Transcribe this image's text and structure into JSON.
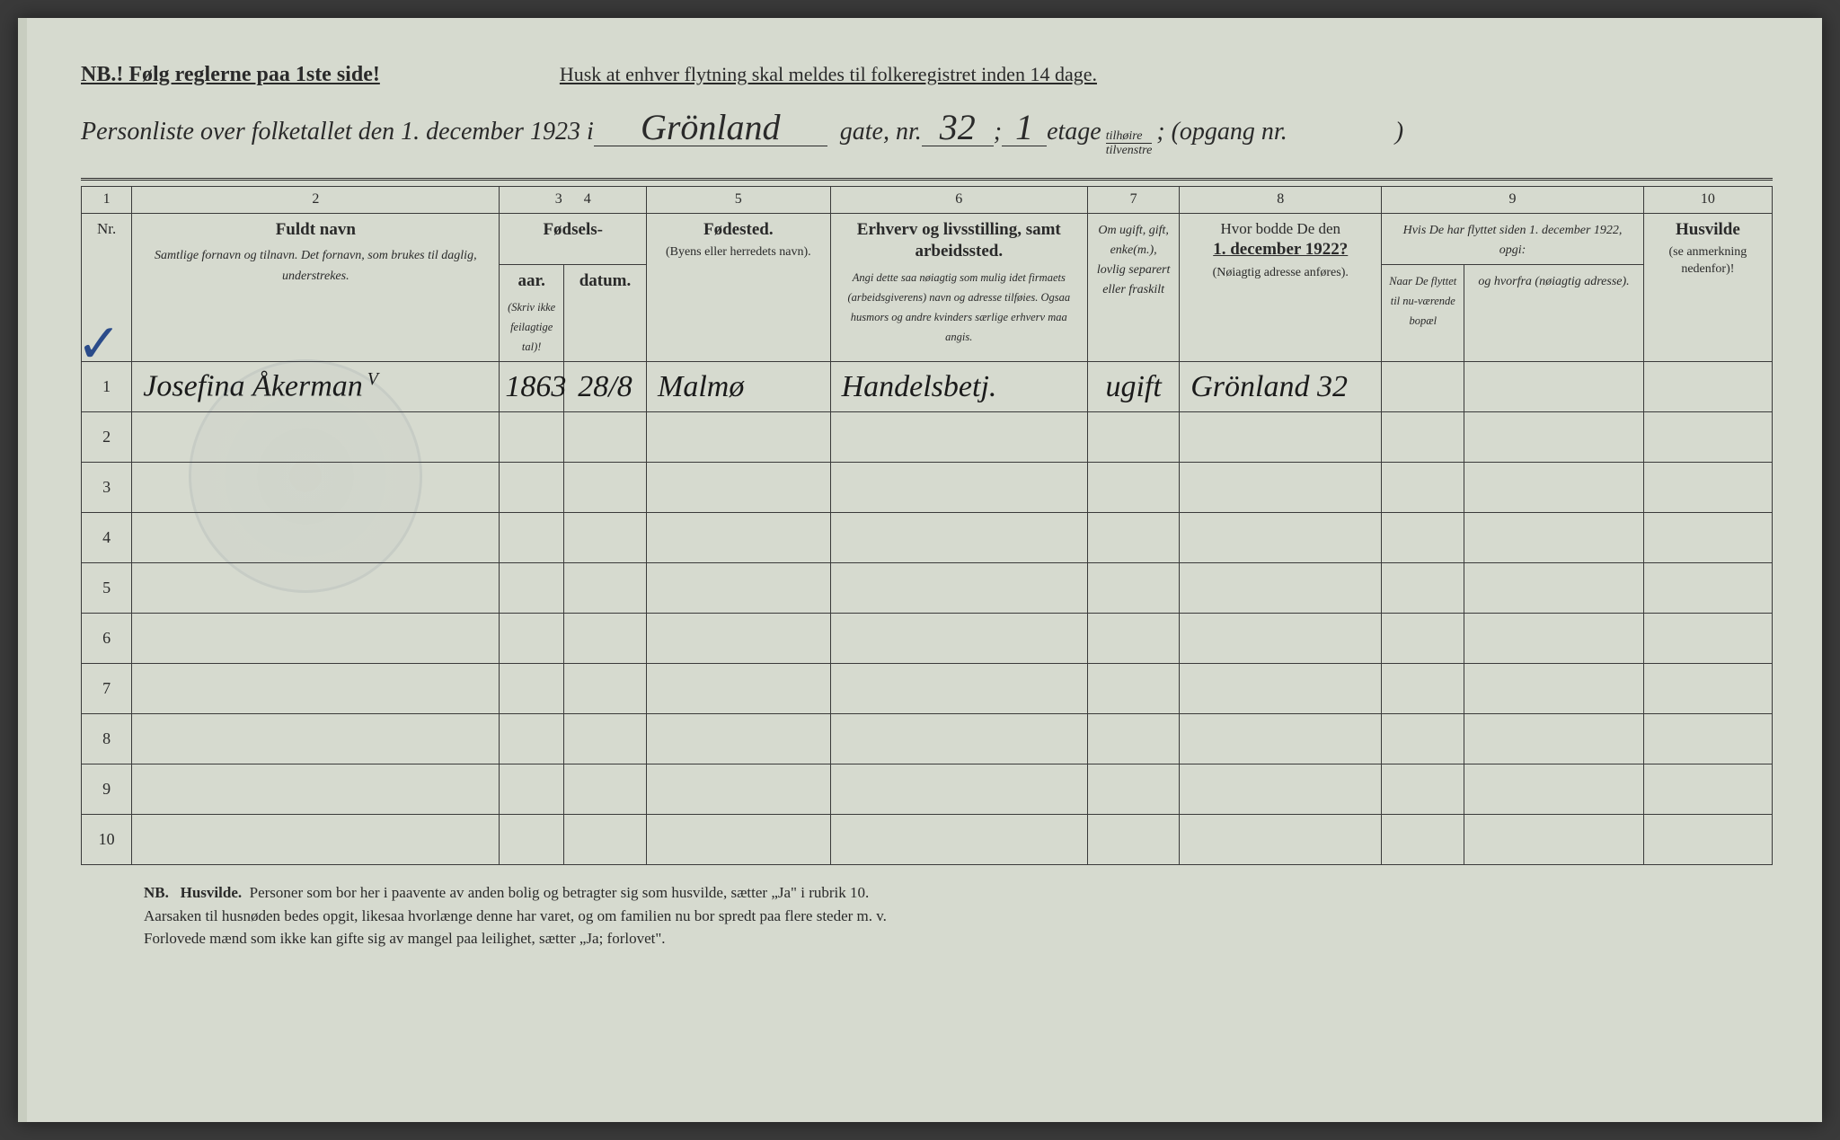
{
  "header": {
    "nb_line": "NB.! Følg reglerne paa 1ste side!",
    "husk_line": "Husk at enhver flytning skal meldes til folkeregistret inden 14 dage.",
    "title_prefix": "Personliste over folketallet den 1. december 1923 i",
    "street_name": "Grönland",
    "gate_label": "gate, nr.",
    "gate_nr": "32",
    "semicolon1": ";",
    "etage_val": "1",
    "etage_label": "etage",
    "fraction_top": "tilhøire",
    "fraction_bot": "tilvenstre",
    "semicolon2": ";",
    "opgang_label": "(opgang nr.",
    "opgang_val": "",
    "close_paren": ")"
  },
  "colnums": [
    "1",
    "2",
    "3",
    "4",
    "5",
    "6",
    "7",
    "8",
    "9",
    "10"
  ],
  "columns": {
    "nr": "Nr.",
    "name_main": "Fuldt navn",
    "name_sub": "Samtlige fornavn og tilnavn.  Det fornavn, som brukes til daglig, understrekes.",
    "birth_main": "Fødsels-",
    "birth_year": "aar.",
    "birth_date": "datum.",
    "birth_note": "(Skriv ikke feilagtige tal)!",
    "birthplace_main": "Fødested.",
    "birthplace_sub": "(Byens eller herredets navn).",
    "occupation_main": "Erhverv og livsstilling, samt arbeidssted.",
    "occupation_sub": "Angi dette saa nøiagtig som mulig idet firmaets (arbeidsgiverens) navn og adresse tilføies. Ogsaa husmors og andre kvinders særlige erhverv maa angis.",
    "marital": "Om ugift, gift, enke(m.), lovlig separert eller fraskilt",
    "addr1922_main": "Hvor bodde De den",
    "addr1922_date": "1. december 1922?",
    "addr1922_sub": "(Nøiagtig adresse anføres).",
    "col9_top": "Hvis De har flyttet siden 1. december 1922, opgi:",
    "col9_a": "Naar De flyttet til nu-værende bopæl",
    "col9_b": "og hvorfra (nøiagtig adresse).",
    "husvilde_main": "Husvilde",
    "husvilde_sub": "(se anmerkning nedenfor)!"
  },
  "rows": [
    {
      "nr": "1",
      "name": "Josefina Åkerman",
      "name_suffix": "V",
      "year": "1863",
      "date": "28/8",
      "birthplace": "Malmø",
      "occupation": "Handelsbetj.",
      "marital": "ugift",
      "addr1922": "Grönland 32",
      "moved": "",
      "from": "",
      "husvilde": ""
    },
    {
      "nr": "2"
    },
    {
      "nr": "3"
    },
    {
      "nr": "4"
    },
    {
      "nr": "5"
    },
    {
      "nr": "6"
    },
    {
      "nr": "7"
    },
    {
      "nr": "8"
    },
    {
      "nr": "9"
    },
    {
      "nr": "10"
    }
  ],
  "footer": {
    "nb": "NB.",
    "husvilde_label": "Husvilde.",
    "line1": "Personer som bor her i paavente av anden bolig og betragter sig som husvilde, sætter „Ja\" i rubrik 10.",
    "line2": "Aarsaken til husnøden bedes opgit, likesaa hvorlænge denne har varet, og om familien nu bor spredt paa flere steder m. v.",
    "line3": "Forlovede mænd som ikke kan gifte sig av mangel paa leilighet, sætter „Ja; forlovet\"."
  },
  "styling": {
    "page_bg": "#d6dacf",
    "border_color": "#3a3a3a",
    "text_color": "#2a2a2a",
    "handwriting_color": "#1a1a1a",
    "checkmark_color": "#2a4b8a",
    "header_fontsize": 24,
    "body_fontsize": 17,
    "handwriting_fontsize": 34
  }
}
